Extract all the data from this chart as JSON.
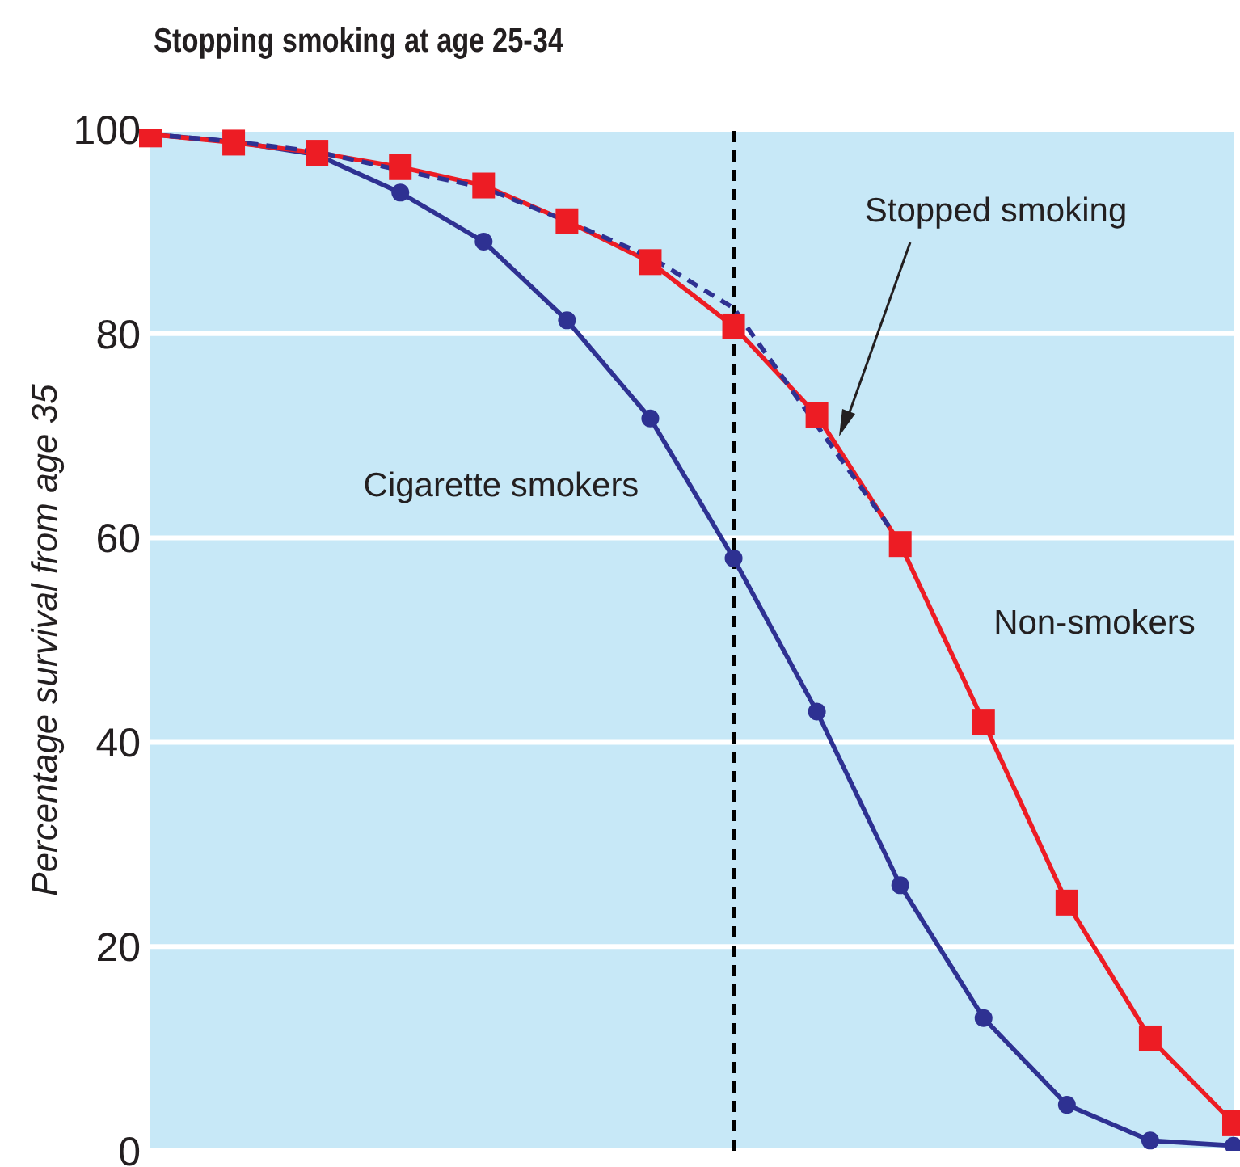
{
  "chart_data": {
    "type": "line",
    "title": "Stopping smoking at age 25-34",
    "ylabel": "Percentage survival from age 35",
    "categories": [
      null,
      null,
      null,
      null,
      null,
      null,
      null,
      null,
      null,
      null,
      null,
      null,
      null,
      null
    ],
    "ylim": [
      0,
      100
    ],
    "yticks": [
      0,
      20,
      40,
      60,
      80,
      100
    ],
    "grid": "y",
    "legend": false,
    "series": [
      {
        "name": "Cigarette smokers",
        "color": "#2e3192",
        "marker": "circle",
        "values": [
          99.5,
          98.8,
          97.5,
          93.8,
          89,
          81.3,
          71.7,
          58,
          43,
          26,
          13,
          4.5,
          1,
          0.5
        ]
      },
      {
        "name": "Non-smokers",
        "color": "#ed1c24",
        "marker": "square",
        "values": [
          99.5,
          98.7,
          97.7,
          96.3,
          94.5,
          91,
          87,
          80.7,
          72,
          59.4,
          42,
          24.3,
          11,
          2.7
        ]
      },
      {
        "name": "Stopped smoking",
        "color": "#2e3192",
        "marker": "none",
        "line_style": "dashed",
        "values": [
          99.5,
          98.8,
          97.8,
          96,
          94.3,
          91,
          87.5,
          82.5,
          71,
          59.6,
          null,
          null,
          null,
          null
        ]
      }
    ]
  }
}
